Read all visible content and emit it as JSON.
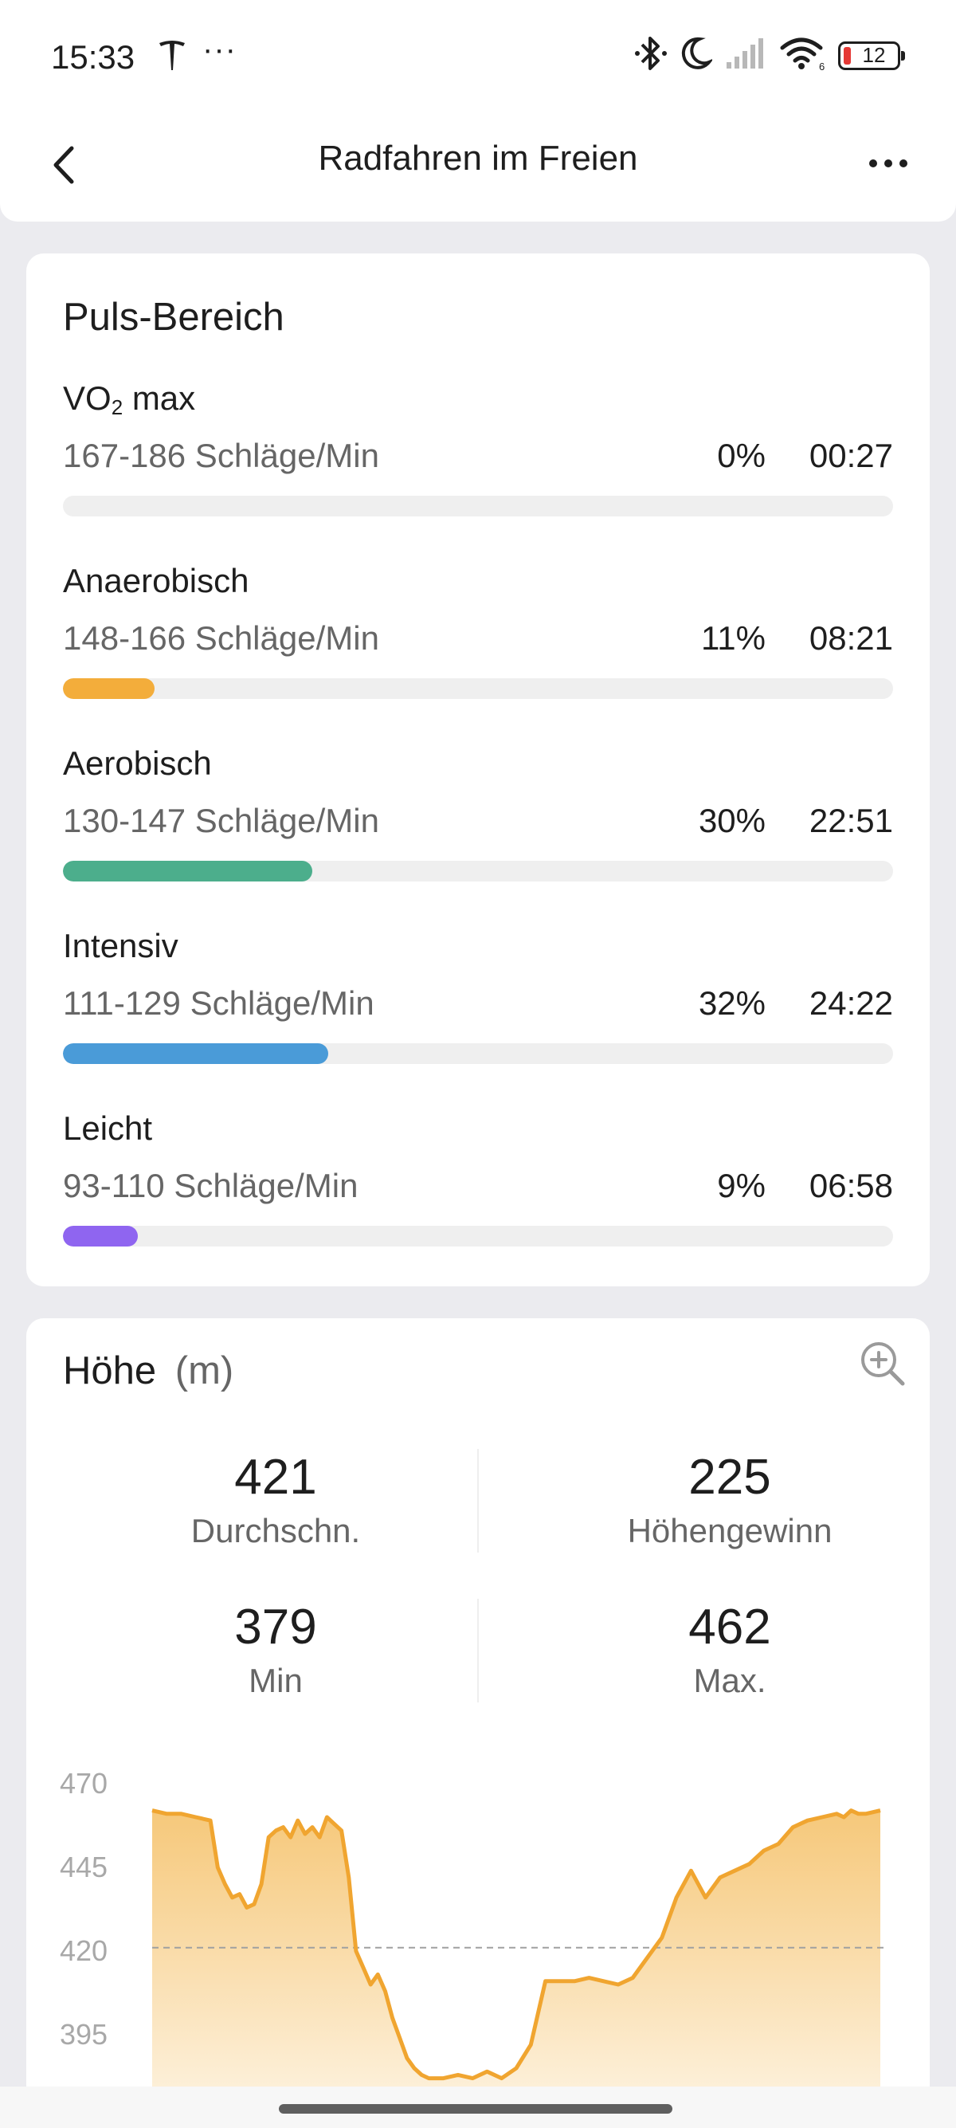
{
  "status_bar": {
    "time": "15:33",
    "overflow": "···",
    "battery": "12",
    "icons": [
      "tesla-icon",
      "bluetooth-icon",
      "do-not-disturb-icon",
      "signal-icon",
      "wifi-icon",
      "battery-icon"
    ],
    "battery_color": "#e53935"
  },
  "app_bar": {
    "title": "Radfahren im Freien",
    "back_icon": "chevron-left-icon",
    "more_icon": "more-horizontal-icon"
  },
  "heart_rate": {
    "title": "Puls-Bereich",
    "zones": [
      {
        "name_main": "VO",
        "name_sub": "2",
        "name_rest": " max",
        "range": "167-186 Schläge/Min",
        "percent": "0%",
        "time": "00:27",
        "fill": 0.0,
        "color": "#f3ad3b"
      },
      {
        "name": "Anaerobisch",
        "range": "148-166 Schläge/Min",
        "percent": "11%",
        "time": "08:21",
        "fill": 0.11,
        "color": "#f3ad3b"
      },
      {
        "name": "Aerobisch",
        "range": "130-147 Schläge/Min",
        "percent": "30%",
        "time": "22:51",
        "fill": 0.3,
        "color": "#4cae8c"
      },
      {
        "name": "Intensiv",
        "range": "111-129 Schläge/Min",
        "percent": "32%",
        "time": "24:22",
        "fill": 0.32,
        "color": "#4a9bd8"
      },
      {
        "name": "Leicht",
        "range": "93-110 Schläge/Min",
        "percent": "9%",
        "time": "06:58",
        "fill": 0.09,
        "color": "#8f65f0"
      }
    ]
  },
  "altitude": {
    "title": "Höhe",
    "unit": "(m)",
    "zoom_icon": "zoom-in-icon",
    "stats": {
      "avg": {
        "value": "421",
        "label": "Durchschn."
      },
      "gain": {
        "value": "225",
        "label": "Höhengewinn"
      },
      "min": {
        "value": "379",
        "label": "Min"
      },
      "max": {
        "value": "462",
        "label": "Max."
      }
    }
  },
  "chart_data": {
    "type": "area",
    "title": "",
    "xlabel": "",
    "ylabel": "",
    "ylim": [
      380,
      470
    ],
    "yticks": [
      "470",
      "445",
      "420",
      "395"
    ],
    "reference_line": 421,
    "line_color": "#f0a530",
    "fill_top_color": "#f6c87a",
    "fill_bottom_color": "#fdf1dc",
    "x": [
      0,
      2,
      4,
      6,
      8,
      9,
      10,
      11,
      12,
      13,
      14,
      15,
      16,
      17,
      18,
      19,
      20,
      21,
      22,
      23,
      24,
      25,
      26,
      27,
      28,
      29,
      30,
      31,
      32,
      33,
      34,
      35,
      36,
      37,
      38,
      40,
      42,
      44,
      46,
      48,
      50,
      52,
      54,
      56,
      58,
      60,
      62,
      64,
      66,
      68,
      70,
      72,
      74,
      76,
      78,
      80,
      82,
      84,
      86,
      88,
      90,
      92,
      94,
      95,
      96,
      97,
      98,
      100
    ],
    "y": [
      462,
      461,
      461,
      460,
      459,
      445,
      440,
      436,
      437,
      433,
      434,
      440,
      454,
      456,
      457,
      454,
      459,
      455,
      457,
      454,
      460,
      458,
      456,
      442,
      420,
      415,
      410,
      413,
      408,
      400,
      394,
      388,
      385,
      383,
      382,
      382,
      383,
      382,
      384,
      382,
      385,
      392,
      411,
      411,
      411,
      412,
      411,
      410,
      412,
      418,
      424,
      436,
      444,
      436,
      442,
      444,
      446,
      450,
      452,
      457,
      459,
      460,
      461,
      460,
      462,
      461,
      461,
      462
    ]
  }
}
